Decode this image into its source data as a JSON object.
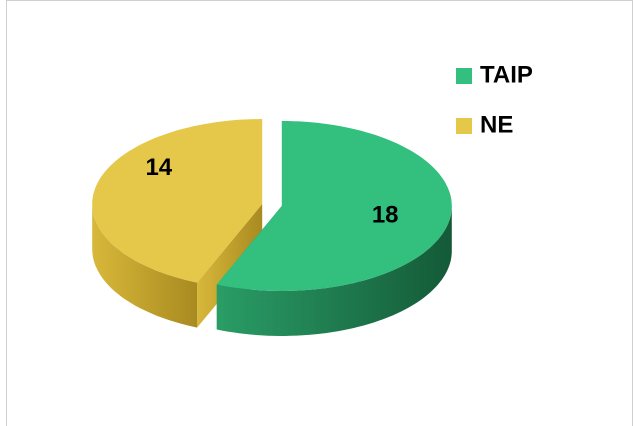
{
  "chart_data": {
    "type": "pie",
    "categories": [
      "TAIP",
      "NE"
    ],
    "values": [
      18,
      14
    ],
    "colors": [
      "#33bf7d",
      "#e5c84a"
    ],
    "legend": "top-right"
  }
}
